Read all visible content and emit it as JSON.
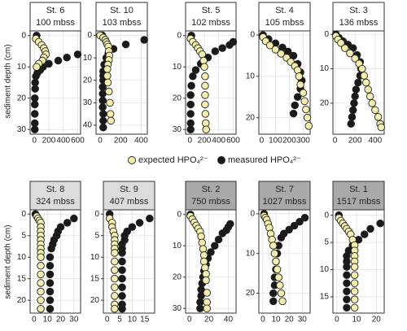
{
  "chart_data": {
    "type": "scatter",
    "y_label": "sediment depth (cm)",
    "legend": [
      {
        "name": "expected HPO₄²⁻",
        "color": "#f3eeac"
      },
      {
        "name": "measured HPO₄²⁻",
        "color": "#1a1a1a"
      }
    ],
    "grid": true,
    "panels": [
      {
        "title": "St. 6",
        "subtitle": "100 mbss",
        "header_color": "#ffffff",
        "xlim": [
          -60,
          640
        ],
        "xticks": [
          0,
          200,
          400,
          600
        ],
        "ylim": [
          -1.5,
          31.5
        ],
        "yticks": [
          0,
          10,
          20,
          30
        ],
        "series": [
          {
            "x": [
              20,
              60,
              100,
              130,
              150,
              160,
              130,
              110,
              60,
              30
            ],
            "y": [
              1,
              2,
              3,
              4,
              5,
              6,
              7,
              8,
              9,
              10
            ]
          },
          {
            "x": [
              30,
              600,
              450,
              330,
              200,
              120,
              80,
              40,
              20,
              10,
              10,
              5,
              5,
              5,
              5,
              5
            ],
            "y": [
              0,
              6,
              7,
              8,
              9,
              10,
              11,
              12,
              13,
              15,
              17,
              20,
              22,
              25,
              28,
              30
            ]
          }
        ]
      },
      {
        "title": "St. 10",
        "subtitle": "103 mbss",
        "header_color": "#ffffff",
        "xlim": [
          -40,
          460
        ],
        "xticks": [
          0,
          200,
          400
        ],
        "ylim": [
          -2,
          44
        ],
        "yticks": [
          0,
          10,
          20,
          30,
          40
        ],
        "series": [
          {
            "x": [
              0,
              30,
              50,
              60,
              70,
              80,
              85,
              90,
              85,
              75,
              70,
              70,
              75,
              85,
              95,
              100,
              105
            ],
            "y": [
              0,
              1,
              2,
              3,
              4,
              5,
              7,
              9,
              11,
              13,
              15,
              18,
              21,
              25,
              30,
              35,
              38
            ]
          },
          {
            "x": [
              20,
              430,
              250,
              130,
              80,
              60,
              40,
              30,
              30,
              30,
              25,
              25,
              25,
              25,
              30,
              30,
              30
            ],
            "y": [
              0,
              2,
              4,
              6,
              8,
              10,
              13,
              16,
              18,
              20,
              23,
              26,
              29,
              32,
              35,
              38,
              41
            ]
          }
        ]
      },
      {
        "title": "St. 5",
        "subtitle": "102 mbss",
        "header_color": "#ffffff",
        "xlim": [
          -60,
          640
        ],
        "xticks": [
          0,
          200,
          400,
          600
        ],
        "ylim": [
          -1.5,
          31.5
        ],
        "yticks": [
          0,
          10,
          20,
          30
        ],
        "series": [
          {
            "x": [
              10,
              40,
              80,
              110,
              140,
              170,
              190,
              200,
              210,
              210,
              210,
              210,
              215,
              220,
              225
            ],
            "y": [
              1,
              2,
              3,
              4,
              5,
              6,
              8,
              10,
              13,
              16,
              19,
              22,
              25,
              28,
              30
            ]
          },
          {
            "x": [
              20,
              600,
              550,
              450,
              350,
              250,
              150,
              80,
              40,
              20,
              10,
              10,
              10,
              10,
              10
            ],
            "y": [
              0,
              2,
              3,
              4,
              5,
              7,
              9,
              11,
              13,
              16,
              19,
              22,
              25,
              28,
              30
            ]
          }
        ]
      },
      {
        "title": "St. 4",
        "subtitle": "105 mbss",
        "header_color": "#ffffff",
        "xlim": [
          -20,
          350
        ],
        "xticks": [
          0,
          100,
          200,
          300
        ],
        "ylim": [
          -1,
          24
        ],
        "yticks": [
          0,
          10,
          20
        ],
        "series": [
          {
            "x": [
              10,
              30,
              60,
              100,
              140,
              180,
              210,
              240,
              260,
              270,
              280,
              300,
              310,
              320,
              330,
              340
            ],
            "y": [
              0.5,
              1.5,
              2.5,
              3.5,
              4.5,
              5.5,
              6.5,
              7.5,
              8.5,
              10,
              12,
              14,
              16,
              18,
              20,
              22
            ]
          },
          {
            "x": [
              10,
              50,
              100,
              150,
              190,
              230,
              260,
              280,
              290,
              280,
              260,
              240,
              230
            ],
            "y": [
              0,
              1,
              2,
              3,
              4,
              5,
              7,
              9,
              11,
              13,
              15,
              17,
              19
            ]
          }
        ]
      },
      {
        "title": "St. 3",
        "subtitle": "136 mbss",
        "header_color": "#ffffff",
        "xlim": [
          -20,
          490
        ],
        "xticks": [
          0,
          200,
          400
        ],
        "ylim": [
          -1,
          29
        ],
        "yticks": [
          0,
          10,
          20
        ],
        "series": [
          {
            "x": [
              10,
              30,
              60,
              100,
              150,
              200,
              240,
              270,
              290,
              310,
              330,
              350,
              370,
              400,
              430,
              450,
              460
            ],
            "y": [
              0.5,
              1.5,
              2.5,
              4,
              5.5,
              7,
              8.5,
              10,
              12,
              14,
              16,
              18,
              20,
              22,
              24,
              26,
              27
            ]
          },
          {
            "x": [
              10,
              40,
              80,
              130,
              180,
              220,
              250,
              260,
              250,
              230,
              210,
              200,
              190,
              180,
              170,
              160
            ],
            "y": [
              0,
              1,
              2,
              3,
              4,
              6,
              8,
              10,
              12,
              14,
              16,
              18,
              20,
              22,
              24,
              26
            ]
          }
        ]
      },
      {
        "title": "St. 8",
        "subtitle": "324 mbss",
        "header_color": "#dcdcdc",
        "xlim": [
          -3,
          35
        ],
        "xticks": [
          0,
          10,
          20,
          30
        ],
        "ylim": [
          -1,
          23
        ],
        "yticks": [
          0,
          5,
          10,
          15,
          20
        ],
        "series": [
          {
            "x": [
              2,
              3,
              4,
              5,
              5,
              5,
              5,
              5,
              5,
              5,
              5,
              5,
              5,
              5,
              5,
              5,
              5,
              5
            ],
            "y": [
              0.5,
              1,
              1.5,
              2,
              3,
              4,
              5,
              6,
              7,
              8,
              9,
              10,
              12,
              14,
              16,
              18,
              20,
              22
            ]
          },
          {
            "x": [
              1,
              30,
              25,
              20,
              18,
              17,
              15,
              14,
              13,
              12,
              12,
              12,
              12,
              12,
              12,
              12
            ],
            "y": [
              0,
              1,
              2,
              3,
              4,
              5,
              6,
              7,
              8,
              10,
              12,
              14,
              16,
              18,
              20,
              22
            ]
          }
        ]
      },
      {
        "title": "St. 9",
        "subtitle": "407 mbss",
        "header_color": "#dcdcdc",
        "xlim": [
          -1.5,
          19
        ],
        "xticks": [
          0,
          5,
          10,
          15
        ],
        "ylim": [
          -1,
          23
        ],
        "yticks": [
          0,
          5,
          10,
          15,
          20
        ],
        "series": [
          {
            "x": [
              1,
              2,
              2,
              2.5,
              3,
              3,
              3,
              3,
              3,
              3,
              3,
              3,
              3,
              3,
              3,
              3
            ],
            "y": [
              1,
              2,
              3,
              4,
              5,
              6,
              7,
              8,
              9,
              11,
              13,
              15,
              17,
              19,
              21,
              22
            ]
          },
          {
            "x": [
              1,
              17,
              13,
              10,
              8,
              7,
              7,
              6,
              6,
              6,
              6,
              6,
              6,
              6,
              6,
              6,
              6
            ],
            "y": [
              0,
              1,
              2,
              3,
              4,
              5,
              6,
              7,
              8,
              9,
              11,
              13,
              15,
              17,
              19,
              21,
              22
            ]
          }
        ]
      },
      {
        "title": "St. 2",
        "subtitle": "750 mbss",
        "header_color": "#a9a9a9",
        "xlim": [
          -4,
          48
        ],
        "xticks": [
          0,
          20,
          40
        ],
        "ylim": [
          -1.5,
          31.5
        ],
        "yticks": [
          0,
          10,
          20,
          30
        ],
        "series": [
          {
            "x": [
              1,
              3,
              5,
              7,
              9,
              11,
              12,
              13,
              14,
              15,
              15,
              16,
              17,
              17,
              18,
              18,
              18
            ],
            "y": [
              0.5,
              1.5,
              2.5,
              3.5,
              4.5,
              5.5,
              7,
              9,
              11,
              13,
              15,
              17,
              19,
              21,
              25,
              28,
              30
            ]
          },
          {
            "x": [
              1,
              42,
              40,
              38,
              34,
              30,
              26,
              22,
              19,
              17,
              15,
              14,
              13,
              12,
              12,
              11,
              11
            ],
            "y": [
              0,
              3,
              4,
              5,
              6,
              8,
              10,
              12,
              14,
              16,
              18,
              20,
              22,
              24,
              26,
              28,
              30
            ]
          }
        ]
      },
      {
        "title": "St. 7",
        "subtitle": "1027 mbss",
        "header_color": "#a9a9a9",
        "xlim": [
          -3,
          36
        ],
        "xticks": [
          0,
          10,
          20,
          30
        ],
        "ylim": [
          -1,
          25
        ],
        "yticks": [
          0,
          10,
          20
        ],
        "series": [
          {
            "x": [
              1,
              2,
              3,
              4,
              5,
              6,
              7,
              8,
              9,
              10,
              11,
              12,
              13,
              14,
              15
            ],
            "y": [
              0.5,
              1,
              1.5,
              2.5,
              3.5,
              5,
              6.5,
              8,
              10,
              12,
              14,
              16,
              18,
              20,
              22
            ]
          },
          {
            "x": [
              1,
              32,
              28,
              24,
              20,
              16,
              14,
              12,
              11,
              10,
              10,
              9,
              9,
              8,
              8
            ],
            "y": [
              0,
              1,
              2,
              3,
              4,
              5,
              6,
              8,
              10,
              12,
              14,
              16,
              18,
              20,
              22
            ]
          }
        ]
      },
      {
        "title": "St. 1",
        "subtitle": "1517 mbss",
        "header_color": "#a9a9a9",
        "xlim": [
          -2,
          24
        ],
        "xticks": [
          0,
          10,
          20
        ],
        "ylim": [
          -1,
          18
        ],
        "yticks": [
          0,
          5,
          10,
          15
        ],
        "series": [
          {
            "x": [
              1,
              2,
              3,
              4,
              5,
              6,
              7,
              8,
              9,
              9,
              9,
              9,
              9,
              9,
              9,
              9,
              9,
              9
            ],
            "y": [
              0.5,
              1,
              1.5,
              2,
              2.5,
              3,
              3.5,
              4.5,
              5.5,
              6.5,
              7.5,
              8.5,
              9.5,
              11,
              12.5,
              14,
              15.5,
              17
            ]
          },
          {
            "x": [
              1,
              22,
              17,
              14,
              11,
              8,
              6,
              5,
              5,
              5,
              5,
              5,
              5,
              5,
              5
            ],
            "y": [
              0,
              1.5,
              2.5,
              3.5,
              4.5,
              5.5,
              6.5,
              7.5,
              8.5,
              9.5,
              11,
              12.5,
              14,
              15.5,
              17
            ]
          }
        ]
      }
    ]
  }
}
